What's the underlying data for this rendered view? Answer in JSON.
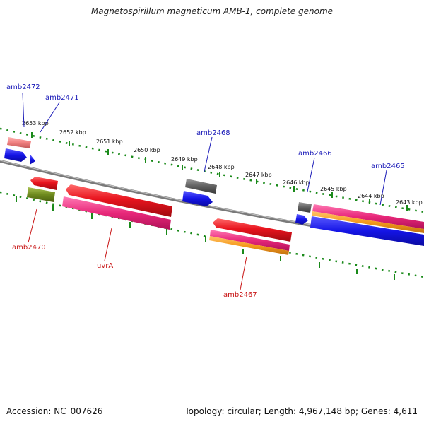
{
  "title": "Magnetospirillum magneticum AMB-1, complete genome",
  "footer": {
    "accession": "Accession: NC_007626",
    "summary": "Topology: circular; Length: 4,967,148 bp; Genes: 4,611"
  },
  "scale": {
    "ticks": [
      "2653 kbp",
      "2652 kbp",
      "2651 kbp",
      "2650 kbp",
      "2649 kbp",
      "2648 kbp",
      "2647 kbp",
      "2646 kbp",
      "2645 kbp",
      "2644 kbp",
      "2643 kbp"
    ]
  },
  "genes": {
    "top": [
      "amb2472",
      "amb2471",
      "amb2468",
      "amb2466",
      "amb2465"
    ],
    "bottom": [
      "amb2470",
      "uvrA",
      "amb2467"
    ]
  },
  "colors": {
    "top_label": "#1a1ab8",
    "bottom_label": "#c81414",
    "red": "#e8141e",
    "pink": "#e8287a",
    "orange": "#f59a1c",
    "blue": "#1414e6",
    "gray": "#606060",
    "olive": "#6e8a1e",
    "salmon": "#f08080",
    "ruler": "#1a8a1a"
  }
}
